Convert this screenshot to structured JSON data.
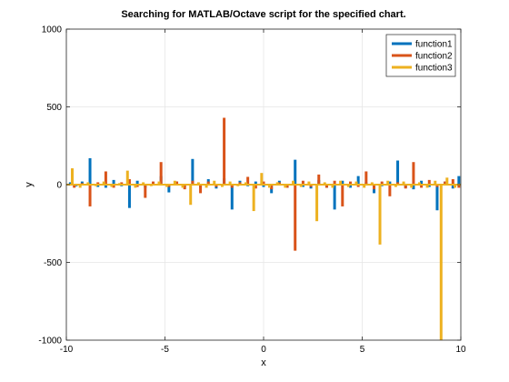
{
  "chart_data": {
    "type": "line",
    "title": "Searching for MATLAB/Octave script for the specified chart.",
    "xlabel": "x",
    "ylabel": "y",
    "xlim": [
      -10,
      10
    ],
    "ylim": [
      -1000,
      1000
    ],
    "grid": true,
    "legend_position": "top-right",
    "xticks": [
      -10,
      -5,
      0,
      5,
      10
    ],
    "yticks": [
      -1000,
      -500,
      0,
      500,
      1000
    ],
    "xtick_labels": [
      "-10",
      "-5",
      "0",
      "5",
      "10"
    ],
    "ytick_labels": [
      "-1000",
      "-500",
      "0",
      "500",
      "1000"
    ],
    "series": [
      {
        "name": "function1",
        "color": "#0072bd",
        "x": [
          -9.8,
          -9.5,
          -9.2,
          -8.8,
          -8.4,
          -8.0,
          -7.6,
          -7.2,
          -6.8,
          -6.4,
          -6.0,
          -5.6,
          -5.2,
          -4.8,
          -4.4,
          -4.0,
          -3.6,
          -3.2,
          -2.8,
          -2.4,
          -2.0,
          -1.6,
          -1.2,
          -0.8,
          -0.4,
          0.0,
          0.4,
          0.8,
          1.2,
          1.6,
          2.0,
          2.4,
          2.8,
          3.2,
          3.6,
          4.0,
          4.4,
          4.8,
          5.2,
          5.6,
          6.0,
          6.4,
          6.8,
          7.2,
          7.6,
          8.0,
          8.4,
          8.8,
          9.2,
          9.6,
          9.9
        ],
        "values": [
          15,
          -10,
          20,
          170,
          -15,
          -20,
          30,
          -10,
          -150,
          25,
          -20,
          15,
          55,
          -50,
          20,
          -10,
          165,
          -20,
          35,
          -25,
          40,
          -160,
          25,
          -10,
          20,
          -15,
          -55,
          25,
          -20,
          160,
          -15,
          -25,
          30,
          -20,
          -160,
          25,
          -20,
          55,
          15,
          -55,
          -10,
          20,
          155,
          -20,
          -30,
          25,
          -15,
          -165,
          20,
          -25,
          55
        ]
      },
      {
        "name": "function2",
        "color": "#d95319",
        "x": [
          -9.6,
          -9.2,
          -8.8,
          -8.4,
          -8.0,
          -7.6,
          -7.2,
          -6.8,
          -6.4,
          -6.0,
          -5.6,
          -5.2,
          -4.8,
          -4.4,
          -4.0,
          -3.6,
          -3.2,
          -2.8,
          -2.4,
          -2.0,
          -1.6,
          -1.2,
          -0.8,
          -0.4,
          0.0,
          0.4,
          0.8,
          1.2,
          1.6,
          2.0,
          2.4,
          2.8,
          3.2,
          3.6,
          4.0,
          4.4,
          4.8,
          5.2,
          5.6,
          6.0,
          6.4,
          6.8,
          7.2,
          7.6,
          8.0,
          8.4,
          8.8,
          9.2,
          9.6,
          9.9
        ],
        "values": [
          -20,
          10,
          -140,
          15,
          85,
          -20,
          15,
          35,
          -15,
          -85,
          20,
          145,
          -15,
          20,
          -30,
          25,
          -55,
          20,
          -15,
          430,
          -20,
          15,
          50,
          -25,
          20,
          -30,
          15,
          -20,
          -425,
          25,
          -15,
          65,
          -20,
          25,
          -140,
          20,
          -15,
          85,
          -30,
          20,
          -75,
          15,
          -25,
          145,
          -20,
          30,
          -15,
          20,
          35,
          -20
        ]
      },
      {
        "name": "function3",
        "color": "#edb120",
        "x": [
          -9.7,
          -9.3,
          -8.9,
          -8.5,
          -8.1,
          -7.7,
          -7.3,
          -6.9,
          -6.5,
          -6.1,
          -5.7,
          -5.3,
          -4.9,
          -4.5,
          -4.1,
          -3.7,
          -3.3,
          -2.9,
          -2.5,
          -2.1,
          -1.7,
          -1.3,
          -0.9,
          -0.5,
          -0.1,
          0.3,
          0.7,
          1.1,
          1.5,
          1.9,
          2.3,
          2.7,
          3.1,
          3.5,
          3.9,
          4.3,
          4.7,
          5.1,
          5.5,
          5.9,
          6.3,
          6.7,
          7.1,
          7.5,
          7.9,
          8.3,
          8.7,
          9.0,
          9.3,
          9.7
        ],
        "values": [
          105,
          -20,
          15,
          -10,
          20,
          -15,
          10,
          90,
          -20,
          15,
          -10,
          20,
          -15,
          25,
          -20,
          -130,
          15,
          -20,
          25,
          -15,
          20,
          -10,
          15,
          -170,
          75,
          -20,
          15,
          -20,
          25,
          -15,
          20,
          -235,
          15,
          -20,
          25,
          -15,
          20,
          -20,
          15,
          -385,
          25,
          -15,
          20,
          -20,
          15,
          -20,
          25,
          -1000,
          45,
          -20
        ]
      }
    ]
  }
}
